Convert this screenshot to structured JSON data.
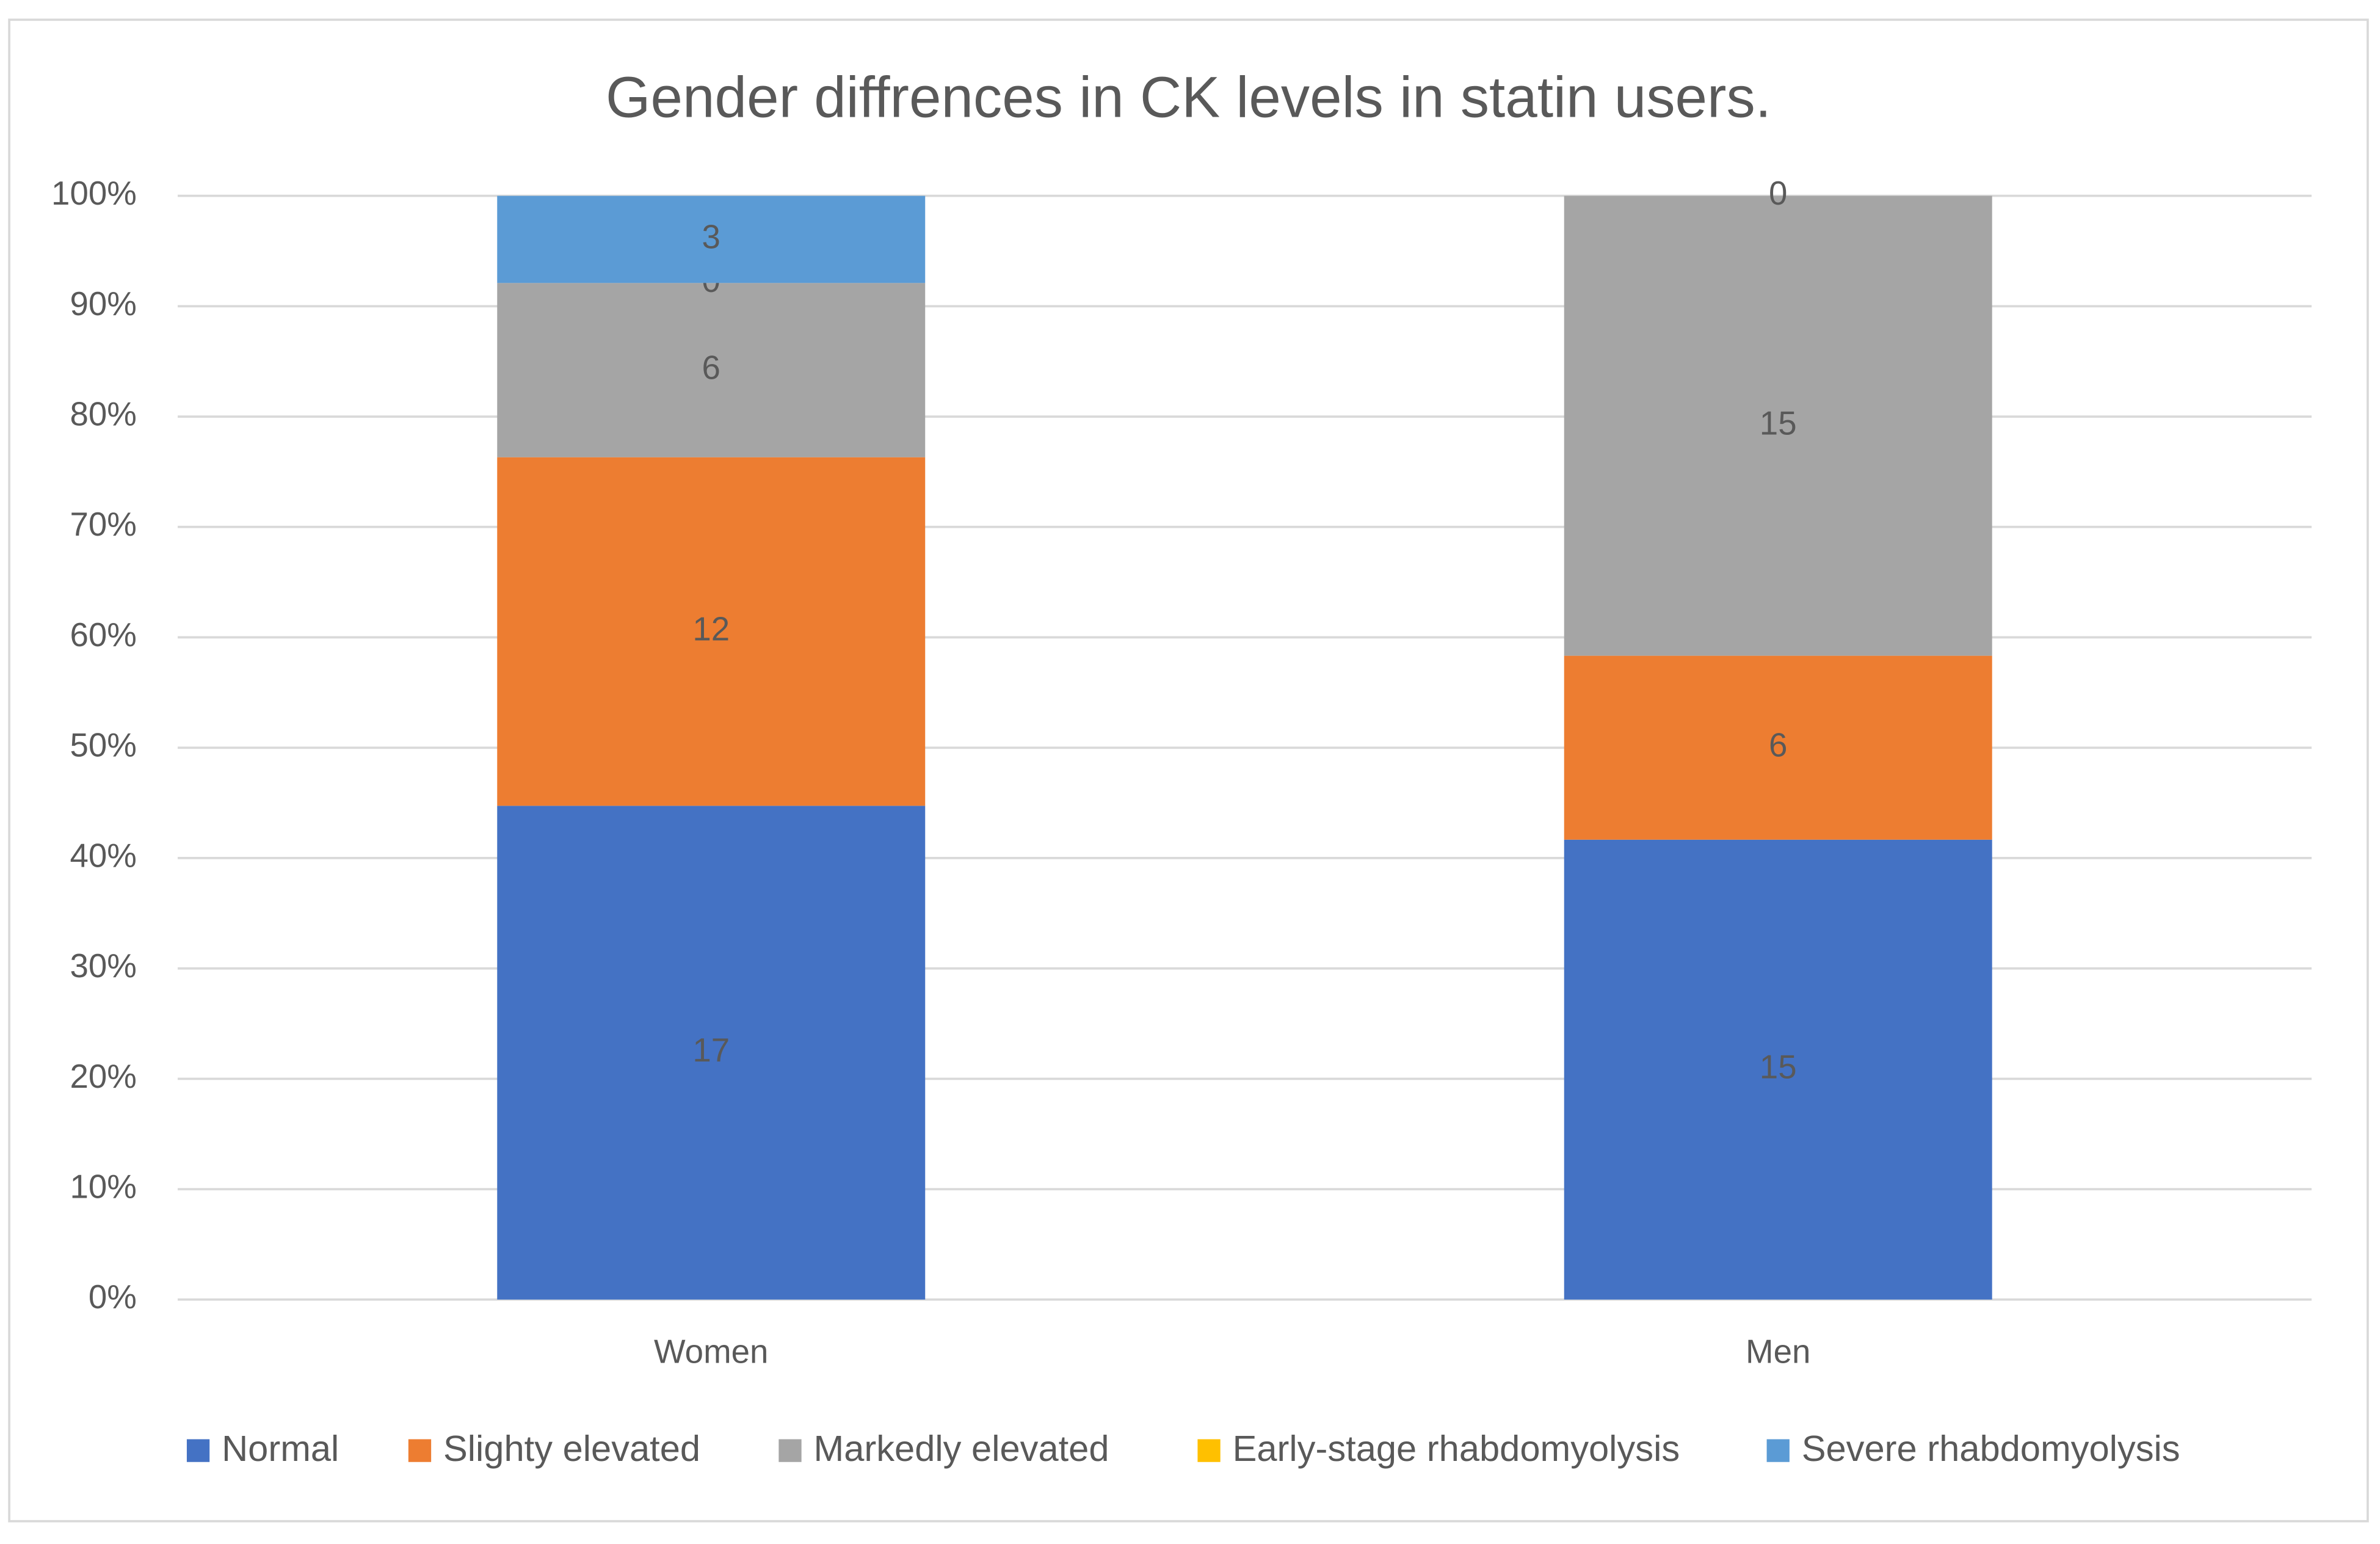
{
  "chart_data": {
    "type": "bar",
    "stacking": "percent",
    "title": "Gender diffrences in CK levels in statin users.",
    "categories": [
      "Women",
      "Men"
    ],
    "series": [
      {
        "name": "Normal",
        "color": "#4472C4",
        "values": [
          17,
          15
        ]
      },
      {
        "name": "Slighty elevated",
        "color": "#ED7D31",
        "values": [
          12,
          6
        ]
      },
      {
        "name": "Markedly elevated",
        "color": "#A5A5A5",
        "values": [
          6,
          15
        ]
      },
      {
        "name": "Early-stage rhabdomyolysis",
        "color": "#FFC000",
        "values": [
          0,
          0
        ]
      },
      {
        "name": "Severe rhabdomyolysis",
        "color": "#5B9BD5",
        "values": [
          3,
          null
        ]
      }
    ],
    "ylim": [
      0,
      100
    ],
    "yticks": [
      {
        "value": 0,
        "label": "0%"
      },
      {
        "value": 10,
        "label": "10%"
      },
      {
        "value": 20,
        "label": "20%"
      },
      {
        "value": 30,
        "label": "30%"
      },
      {
        "value": 40,
        "label": "40%"
      },
      {
        "value": 50,
        "label": "50%"
      },
      {
        "value": 60,
        "label": "60%"
      },
      {
        "value": 70,
        "label": "70%"
      },
      {
        "value": 80,
        "label": "80%"
      },
      {
        "value": 90,
        "label": "90%"
      },
      {
        "value": 100,
        "label": "100%"
      }
    ],
    "grid": true,
    "legend": "bottom"
  }
}
